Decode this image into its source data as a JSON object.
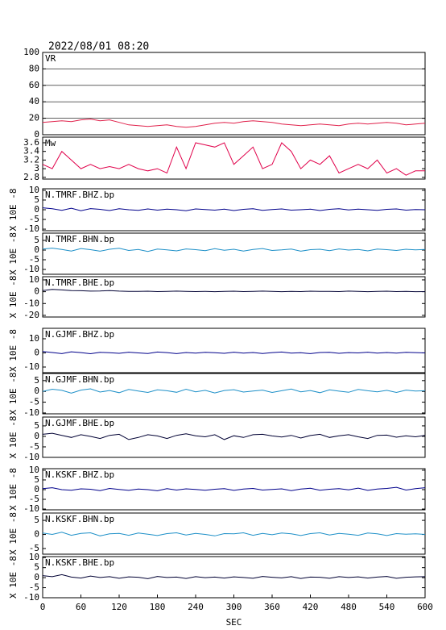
{
  "header": {
    "title": "2022/08/01 08:20"
  },
  "chart_data": [
    {
      "type": "line",
      "label": "VR",
      "xlim": [
        0,
        600
      ],
      "ylim": [
        0,
        100
      ],
      "yticks": [
        0,
        20,
        40,
        60,
        80,
        100
      ],
      "grid": true,
      "x": [
        0,
        15,
        30,
        45,
        60,
        75,
        90,
        105,
        120,
        135,
        150,
        165,
        180,
        195,
        210,
        225,
        240,
        255,
        270,
        285,
        300,
        315,
        330,
        345,
        360,
        375,
        390,
        405,
        420,
        435,
        450,
        465,
        480,
        495,
        510,
        525,
        540,
        555,
        570,
        585,
        600
      ],
      "series": [
        {
          "name": "VR",
          "color": "#e0204a",
          "values": [
            15,
            16,
            17,
            16,
            18,
            19,
            17,
            18,
            15,
            12,
            11,
            10,
            11,
            12,
            10,
            9,
            10,
            12,
            14,
            15,
            14,
            16,
            17,
            16,
            15,
            13,
            12,
            11,
            12,
            13,
            12,
            11,
            13,
            14,
            13,
            14,
            15,
            14,
            12,
            13,
            14
          ]
        }
      ]
    },
    {
      "type": "line",
      "label": "Mw",
      "xlim": [
        0,
        600
      ],
      "ylim": [
        2.76,
        3.73
      ],
      "yticks": [
        2.8,
        3.0,
        3.2,
        3.4,
        3.6
      ],
      "grid": false,
      "x": [
        0,
        15,
        30,
        45,
        60,
        75,
        90,
        105,
        120,
        135,
        150,
        165,
        180,
        195,
        210,
        225,
        240,
        255,
        270,
        285,
        300,
        315,
        330,
        345,
        360,
        375,
        390,
        405,
        420,
        435,
        450,
        465,
        480,
        495,
        510,
        525,
        540,
        555,
        570,
        585,
        600
      ],
      "series": [
        {
          "name": "Mw",
          "color": "#e0004a",
          "values": [
            3.1,
            3.0,
            3.4,
            3.2,
            3.0,
            3.1,
            3.0,
            3.05,
            3.0,
            3.1,
            3.0,
            2.95,
            3.0,
            2.9,
            3.5,
            3.0,
            3.6,
            3.55,
            3.5,
            3.6,
            3.1,
            3.3,
            3.5,
            3.0,
            3.1,
            3.6,
            3.4,
            3.0,
            3.2,
            3.1,
            3.3,
            2.9,
            3.0,
            3.1,
            3.0,
            3.2,
            2.9,
            3.0,
            2.85,
            2.95,
            2.95
          ]
        }
      ]
    },
    {
      "type": "line",
      "label": "N.TMRF.BHZ.bp",
      "ylabel": "X 10E -8",
      "xlim": [
        0,
        600
      ],
      "ylim": [
        -10.8,
        10.8
      ],
      "yticks": [
        10,
        5,
        0,
        -5,
        -10
      ],
      "grid": false,
      "x": [
        0,
        15,
        30,
        45,
        60,
        75,
        90,
        105,
        120,
        135,
        150,
        165,
        180,
        195,
        210,
        225,
        240,
        255,
        270,
        285,
        300,
        315,
        330,
        345,
        360,
        375,
        390,
        405,
        420,
        435,
        450,
        465,
        480,
        495,
        510,
        525,
        540,
        555,
        570,
        585,
        600
      ],
      "series": [
        {
          "name": "N.TMRF.BHZ.bp",
          "color": "#00008b",
          "values": [
            1,
            0.5,
            -0.3,
            0.8,
            -0.5,
            0.6,
            0.2,
            -0.4,
            0.5,
            0,
            -0.3,
            0.4,
            -0.2,
            0.3,
            0,
            -0.5,
            0.4,
            0.1,
            -0.2,
            0.3,
            -0.4,
            0.2,
            0.5,
            -0.3,
            0.1,
            0.4,
            -0.2,
            0,
            0.3,
            -0.4,
            0.2,
            0.5,
            -0.1,
            0.3,
            0,
            -0.3,
            0.2,
            0.4,
            -0.2,
            0.1,
            0
          ]
        }
      ]
    },
    {
      "type": "line",
      "label": "N.TMRF.BHN.bp",
      "ylabel": "X 10E -8",
      "xlim": [
        0,
        600
      ],
      "ylim": [
        -12.5,
        8.75
      ],
      "yticks": [
        5,
        0,
        -5,
        -10
      ],
      "grid": false,
      "x": [
        0,
        15,
        30,
        45,
        60,
        75,
        90,
        105,
        120,
        135,
        150,
        165,
        180,
        195,
        210,
        225,
        240,
        255,
        270,
        285,
        300,
        315,
        330,
        345,
        360,
        375,
        390,
        405,
        420,
        435,
        450,
        465,
        480,
        495,
        510,
        525,
        540,
        555,
        570,
        585,
        600
      ],
      "series": [
        {
          "name": "N.TMRF.BHN.bp",
          "color": "#1e90c8",
          "values": [
            0.5,
            1,
            0.3,
            -0.5,
            0.8,
            0.2,
            -0.6,
            0.4,
            0.9,
            -0.2,
            0.3,
            -0.7,
            0.5,
            0.1,
            -0.4,
            0.6,
            0.2,
            -0.3,
            0.7,
            -0.1,
            0.4,
            -0.5,
            0.3,
            0.8,
            -0.2,
            0.1,
            0.5,
            -0.6,
            0.2,
            0.4,
            -0.3,
            0.6,
            0,
            0.3,
            -0.4,
            0.5,
            0.2,
            -0.2,
            0.4,
            0.1,
            0.3
          ]
        }
      ]
    },
    {
      "type": "line",
      "label": "N.TMRF.BHE.bp",
      "ylabel": "X 10E -8",
      "xlim": [
        0,
        600
      ],
      "ylim": [
        -21.4,
        12.7
      ],
      "yticks": [
        10,
        0,
        -10,
        -20
      ],
      "grid": false,
      "x": [
        0,
        15,
        30,
        45,
        60,
        75,
        90,
        105,
        120,
        135,
        150,
        165,
        180,
        195,
        210,
        225,
        240,
        255,
        270,
        285,
        300,
        315,
        330,
        345,
        360,
        375,
        390,
        405,
        420,
        435,
        450,
        465,
        480,
        495,
        510,
        525,
        540,
        555,
        570,
        585,
        600
      ],
      "series": [
        {
          "name": "N.TMRF.BHE.bp",
          "color": "#000033",
          "values": [
            1,
            2,
            1.5,
            1,
            0.8,
            0.5,
            0.6,
            1,
            0.5,
            0.3,
            0.2,
            0.4,
            0.1,
            0.3,
            0.5,
            0.2,
            0.1,
            0.3,
            0,
            0.2,
            0.4,
            0.1,
            0.3,
            0.5,
            0.2,
            0,
            0.3,
            0.1,
            0.4,
            0.2,
            0.3,
            0.1,
            0.5,
            0.2,
            0,
            0.3,
            0.4,
            0.1,
            0.2,
            0,
            0.1
          ]
        }
      ]
    },
    {
      "type": "line",
      "label": "N.GJMF.BHZ.bp",
      "ylabel": "X 10E -8",
      "xlim": [
        0,
        600
      ],
      "ylim": [
        -14,
        17.4
      ],
      "yticks": [
        10,
        0,
        -10
      ],
      "grid": false,
      "x": [
        0,
        15,
        30,
        45,
        60,
        75,
        90,
        105,
        120,
        135,
        150,
        165,
        180,
        195,
        210,
        225,
        240,
        255,
        270,
        285,
        300,
        315,
        330,
        345,
        360,
        375,
        390,
        405,
        420,
        435,
        450,
        465,
        480,
        495,
        510,
        525,
        540,
        555,
        570,
        585,
        600
      ],
      "series": [
        {
          "name": "N.GJMF.BHZ.bp",
          "color": "#00008b",
          "values": [
            1,
            0.3,
            -0.5,
            0.8,
            0.2,
            -0.6,
            0.4,
            0.1,
            -0.3,
            0.5,
            0,
            -0.4,
            0.6,
            0.2,
            -0.5,
            0.3,
            -0.2,
            0.4,
            0.1,
            -0.3,
            0.5,
            -0.1,
            0.3,
            -0.4,
            0.2,
            0.6,
            -0.2,
            0.1,
            -0.5,
            0.3,
            0.4,
            -0.3,
            0.2,
            0,
            0.5,
            -0.2,
            0.3,
            -0.1,
            0.4,
            0.2,
            0
          ]
        }
      ]
    },
    {
      "type": "line",
      "label": "N.GJMF.BHN.bp",
      "ylabel": "X 10E -8",
      "xlim": [
        0,
        600
      ],
      "ylim": [
        -10.4,
        8.3
      ],
      "yticks": [
        5,
        0,
        -5,
        -10
      ],
      "grid": false,
      "x": [
        0,
        15,
        30,
        45,
        60,
        75,
        90,
        105,
        120,
        135,
        150,
        165,
        180,
        195,
        210,
        225,
        240,
        255,
        270,
        285,
        300,
        315,
        330,
        345,
        360,
        375,
        390,
        405,
        420,
        435,
        450,
        465,
        480,
        495,
        510,
        525,
        540,
        555,
        570,
        585,
        600
      ],
      "series": [
        {
          "name": "N.GJMF.BHN.bp",
          "color": "#1e90c8",
          "values": [
            0,
            1,
            0.5,
            -0.8,
            0.6,
            1.2,
            -0.3,
            0.4,
            -0.6,
            0.9,
            0.2,
            -0.5,
            0.7,
            0.3,
            -0.4,
            1,
            -0.2,
            0.5,
            -0.7,
            0.4,
            0.8,
            -0.3,
            0.2,
            0.6,
            -0.5,
            0.3,
            1.1,
            -0.2,
            0.4,
            -0.6,
            0.7,
            0.1,
            -0.4,
            0.9,
            0.3,
            -0.2,
            0.5,
            -0.5,
            0.6,
            0.2,
            0.3
          ]
        }
      ]
    },
    {
      "type": "line",
      "label": "N.GJMF.BHE.bp",
      "ylabel": "X 10E -8",
      "xlim": [
        0,
        600
      ],
      "ylim": [
        -10,
        9.2
      ],
      "yticks": [
        5,
        0,
        -5,
        -10
      ],
      "grid": false,
      "x": [
        0,
        15,
        30,
        45,
        60,
        75,
        90,
        105,
        120,
        135,
        150,
        165,
        180,
        195,
        210,
        225,
        240,
        255,
        270,
        285,
        300,
        315,
        330,
        345,
        360,
        375,
        390,
        405,
        420,
        435,
        450,
        465,
        480,
        495,
        510,
        525,
        540,
        555,
        570,
        585,
        600
      ],
      "series": [
        {
          "name": "N.GJMF.BHE.bp",
          "color": "#000033",
          "values": [
            1,
            1.5,
            0.5,
            -0.5,
            0.8,
            0,
            -1,
            0.5,
            1,
            -1.5,
            -0.5,
            0.8,
            0.2,
            -1,
            0.5,
            1.2,
            0.3,
            -0.2,
            0.8,
            -1.5,
            0.3,
            -0.5,
            0.8,
            1,
            0.2,
            -0.3,
            0.5,
            -0.8,
            0.4,
            1,
            -0.5,
            0.3,
            0.8,
            -0.2,
            -1,
            0.5,
            0.6,
            -0.4,
            0.3,
            -0.2,
            0.5
          ]
        }
      ]
    },
    {
      "type": "line",
      "label": "N.KSKF.BHZ.bp",
      "ylabel": "X 10E -8",
      "xlim": [
        0,
        600
      ],
      "ylim": [
        -10.4,
        10.8
      ],
      "yticks": [
        10,
        5,
        0,
        -5,
        -10
      ],
      "grid": false,
      "x": [
        0,
        15,
        30,
        45,
        60,
        75,
        90,
        105,
        120,
        135,
        150,
        165,
        180,
        195,
        210,
        225,
        240,
        255,
        270,
        285,
        300,
        315,
        330,
        345,
        360,
        375,
        390,
        405,
        420,
        435,
        450,
        465,
        480,
        495,
        510,
        525,
        540,
        555,
        570,
        585,
        600
      ],
      "series": [
        {
          "name": "N.KSKF.BHZ.bp",
          "color": "#00008b",
          "values": [
            0.5,
            1,
            0,
            -0.3,
            0.4,
            0.2,
            -0.5,
            0.6,
            0.1,
            -0.4,
            0.3,
            0,
            -0.6,
            0.5,
            -0.2,
            0.4,
            0.1,
            -0.3,
            0.2,
            0.5,
            -0.4,
            0.3,
            0.6,
            -0.2,
            0.1,
            0.4,
            -0.5,
            0.3,
            0.7,
            -0.3,
            0.2,
            0.5,
            -0.1,
            0.8,
            -0.4,
            0.3,
            0.6,
            1.2,
            -0.2,
            0.5,
            1
          ]
        }
      ]
    },
    {
      "type": "line",
      "label": "N.KSKF.BHN.bp",
      "ylabel": "X 10E -8",
      "xlim": [
        0,
        600
      ],
      "ylim": [
        -7,
        7.6
      ],
      "yticks": [
        5,
        0,
        -5
      ],
      "grid": false,
      "x": [
        0,
        15,
        30,
        45,
        60,
        75,
        90,
        105,
        120,
        135,
        150,
        165,
        180,
        195,
        210,
        225,
        240,
        255,
        270,
        285,
        300,
        315,
        330,
        345,
        360,
        375,
        390,
        405,
        420,
        435,
        450,
        465,
        480,
        495,
        510,
        525,
        540,
        555,
        570,
        585,
        600
      ],
      "series": [
        {
          "name": "N.KSKF.BHN.bp",
          "color": "#1e90c8",
          "values": [
            0.5,
            0,
            0.8,
            -0.3,
            0.4,
            0.6,
            -0.5,
            0.2,
            0.4,
            -0.3,
            0.5,
            0.1,
            -0.4,
            0.3,
            0.6,
            -0.2,
            0.4,
            0,
            -0.5,
            0.3,
            0.2,
            0.6,
            -0.3,
            0.4,
            -0.1,
            0.5,
            0.2,
            -0.4,
            0.3,
            0.6,
            -0.2,
            0.4,
            0.1,
            -0.3,
            0.5,
            0.2,
            -0.4,
            0.3,
            0.1,
            0.2,
            0
          ]
        }
      ]
    },
    {
      "type": "line",
      "label": "N.KSKF.BHE.bp",
      "ylabel": "X 10E -8",
      "xlabel": "SEC",
      "xlim": [
        0,
        600
      ],
      "xticks": [
        0,
        60,
        120,
        180,
        240,
        300,
        360,
        420,
        480,
        540,
        600
      ],
      "ylim": [
        -10,
        10.5
      ],
      "yticks": [
        10,
        5,
        0,
        -5,
        -10
      ],
      "grid": false,
      "x": [
        0,
        15,
        30,
        45,
        60,
        75,
        90,
        105,
        120,
        135,
        150,
        165,
        180,
        195,
        210,
        225,
        240,
        255,
        270,
        285,
        300,
        315,
        330,
        345,
        360,
        375,
        390,
        405,
        420,
        435,
        450,
        465,
        480,
        495,
        510,
        525,
        540,
        555,
        570,
        585,
        600
      ],
      "series": [
        {
          "name": "N.KSKF.BHE.bp",
          "color": "#000033",
          "values": [
            1,
            0.5,
            1.5,
            0.3,
            -0.2,
            0.8,
            0.1,
            0.5,
            -0.3,
            0.4,
            0.2,
            -0.5,
            0.6,
            0.1,
            0.3,
            -0.4,
            0.5,
            0,
            0.3,
            -0.2,
            0.4,
            0.1,
            -0.3,
            0.6,
            0.2,
            -0.1,
            0.5,
            -0.4,
            0.3,
            0.2,
            -0.3,
            0.5,
            0.1,
            0.4,
            -0.2,
            0.3,
            0.6,
            -0.3,
            0.2,
            0.4,
            0.5
          ]
        }
      ]
    }
  ]
}
